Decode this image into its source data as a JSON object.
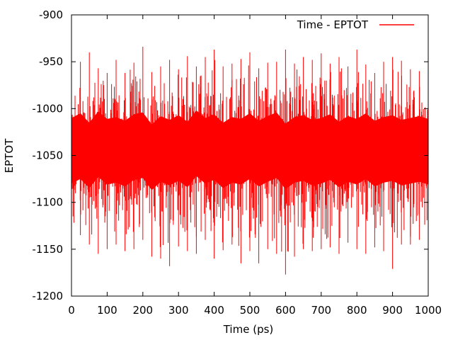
{
  "chart_data": {
    "type": "line",
    "title": "",
    "xlabel": "Time (ps)",
    "ylabel": "EPTOT",
    "xlim": [
      0,
      1000
    ],
    "ylim": [
      -1200,
      -900
    ],
    "x_ticks": [
      0,
      100,
      200,
      300,
      400,
      500,
      600,
      700,
      800,
      900,
      1000
    ],
    "y_ticks": [
      -900,
      -950,
      -1000,
      -1050,
      -1100,
      -1150,
      -1200
    ],
    "x_tick_labels": [
      "0",
      "100",
      "200",
      "300",
      "400",
      "500",
      "600",
      "700",
      "800",
      "900",
      "1000"
    ],
    "y_tick_labels": [
      "-900",
      "-950",
      "-1000",
      "-1050",
      "-1100",
      "-1150",
      "-1200"
    ],
    "grid": false,
    "legend_position": "top-right",
    "series": [
      {
        "name": "Time - EPTOT",
        "color": "#ff0000",
        "x": [
          0,
          25,
          50,
          75,
          100,
          125,
          150,
          175,
          200,
          225,
          250,
          275,
          300,
          325,
          350,
          375,
          400,
          425,
          450,
          475,
          500,
          525,
          550,
          575,
          600,
          625,
          650,
          675,
          700,
          725,
          750,
          775,
          800,
          825,
          850,
          875,
          900,
          925,
          950,
          975,
          1000
        ],
        "values": [
          -1045,
          -1040,
          -1050,
          -1038,
          -1046,
          -1044,
          -1048,
          -1041,
          -1039,
          -1052,
          -1043,
          -1047,
          -1042,
          -1049,
          -1037,
          -1045,
          -1041,
          -1050,
          -1044,
          -1046,
          -1040,
          -1048,
          -1043,
          -1039,
          -1051,
          -1044,
          -1042,
          -1047,
          -1045,
          -1041,
          -1049,
          -1043,
          -1046,
          -1040,
          -1048,
          -1044,
          -1042,
          -1047,
          -1045,
          -1043,
          -1046
        ],
        "max": [
          -975,
          -950,
          -940,
          -957,
          -962,
          -948,
          -962,
          -951,
          -934,
          -961,
          -955,
          -948,
          -958,
          -944,
          -955,
          -945,
          -937,
          -955,
          -952,
          -947,
          -940,
          -957,
          -951,
          -950,
          -937,
          -952,
          -945,
          -948,
          -941,
          -952,
          -945,
          -955,
          -937,
          -953,
          -962,
          -950,
          -945,
          -949,
          -958,
          -960,
          -977
        ],
        "min": [
          -1140,
          -1135,
          -1145,
          -1155,
          -1150,
          -1145,
          -1152,
          -1150,
          -1140,
          -1158,
          -1160,
          -1168,
          -1147,
          -1152,
          -1155,
          -1140,
          -1160,
          -1151,
          -1145,
          -1165,
          -1152,
          -1165,
          -1150,
          -1155,
          -1177,
          -1158,
          -1150,
          -1152,
          -1150,
          -1148,
          -1155,
          -1143,
          -1150,
          -1155,
          -1148,
          -1152,
          -1171,
          -1145,
          -1145,
          -1140,
          -1135
        ]
      }
    ]
  }
}
